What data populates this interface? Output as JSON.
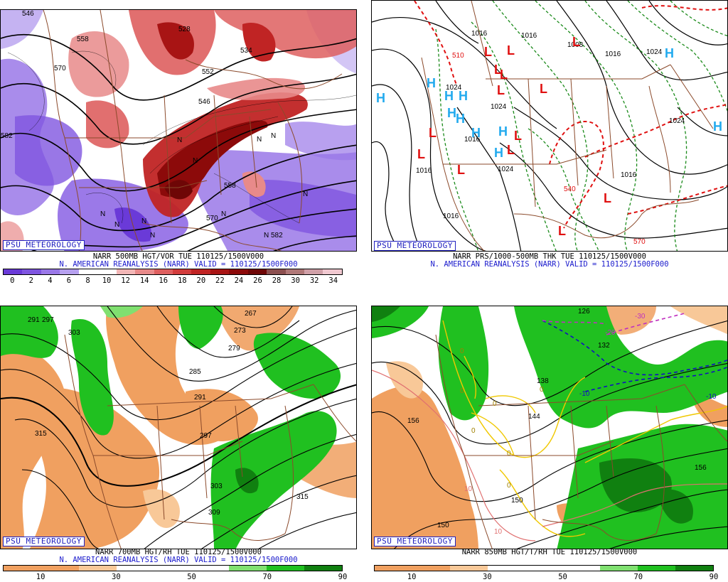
{
  "psu_label": "PSU METEOROLOGY",
  "panels": [
    {
      "id": "vorticity",
      "title_line1": "NARR 500MB HGT/VOR TUE 110125/1500V000",
      "title_line2": "N. AMERICAN REANALYSIS (NARR) VALID = 110125/1500F000",
      "colorbar": {
        "colors": [
          "#6a3ad8",
          "#7f55e0",
          "#9a78e8",
          "#b6a0ef",
          "#ffffff",
          "#ffffff",
          "#f2b6b6",
          "#e88a8a",
          "#de5f5f",
          "#d23c3c",
          "#c02424",
          "#a81414",
          "#8c0a0a",
          "#6e0606",
          "#8c5050",
          "#b07878",
          "#d0a0a8",
          "#f0c8d0"
        ],
        "ticks": [
          "0",
          "2",
          "4",
          "6",
          "8",
          "10",
          "12",
          "14",
          "16",
          "18",
          "20",
          "22",
          "24",
          "26",
          "28",
          "30",
          "32",
          "34"
        ]
      },
      "contour_labels": [
        "546",
        "558",
        "570",
        "582",
        "528",
        "534",
        "552",
        "570",
        "582",
        "546",
        "558"
      ],
      "symbols": [
        "N",
        "N",
        "N",
        "N",
        "N",
        "N",
        "N",
        "N",
        "N",
        "N",
        "N"
      ]
    },
    {
      "id": "thickness",
      "title_line1": "NARR PRS/1000-500MB THK TUE 110125/1500V000",
      "title_line2": "N. AMERICAN REANALYSIS (NARR) VALID = 110125/1500F000",
      "contour_labels": [
        "1016",
        "1016",
        "1008",
        "1016",
        "1024",
        "1024",
        "1024",
        "1024",
        "1016",
        "1016",
        "1016",
        "1016",
        "1024"
      ],
      "thickness_labels": [
        "510",
        "540",
        "570"
      ],
      "highs": [
        "H",
        "H",
        "H",
        "H",
        "H",
        "H",
        "H",
        "H",
        "H",
        "H",
        "H"
      ],
      "lows": [
        "L",
        "L",
        "L",
        "L",
        "L",
        "L",
        "L",
        "L",
        "L",
        "L",
        "L",
        "L",
        "L",
        "L"
      ]
    },
    {
      "id": "h700",
      "title_line1": "NARR 700MB HGT/RH TUE 110125/1500V000",
      "title_line2": "N. AMERICAN REANALYSIS (NARR) VALID = 110125/1500F000",
      "colorbar": {
        "colors": [
          "#f0a060",
          "#f0a060",
          "#f8c898",
          "#ffffff",
          "#ffffff",
          "#ffffff",
          "#80e070",
          "#20c020",
          "#108010"
        ],
        "ticks": [
          "10",
          "30",
          "50",
          "70",
          "90"
        ]
      },
      "contour_labels": [
        "291",
        "297",
        "303",
        "267",
        "273",
        "279",
        "285",
        "291",
        "297",
        "303",
        "309",
        "315",
        "315"
      ]
    },
    {
      "id": "h850",
      "title_line1": "NARR 850MB HGT/T/RH TUE 110125/1500V000",
      "colorbar": {
        "colors": [
          "#f0a060",
          "#f0a060",
          "#f8c898",
          "#ffffff",
          "#ffffff",
          "#ffffff",
          "#80e070",
          "#20c020",
          "#108010"
        ],
        "ticks": [
          "10",
          "30",
          "50",
          "70",
          "90"
        ]
      },
      "contour_labels": [
        "126",
        "132",
        "138",
        "144",
        "150",
        "156",
        "150",
        "156"
      ],
      "temp_labels": [
        "-30",
        "-20",
        "-10",
        "-10",
        "0",
        "0",
        "0",
        "0",
        "0",
        "0",
        "0",
        "10",
        "10"
      ]
    }
  ]
}
